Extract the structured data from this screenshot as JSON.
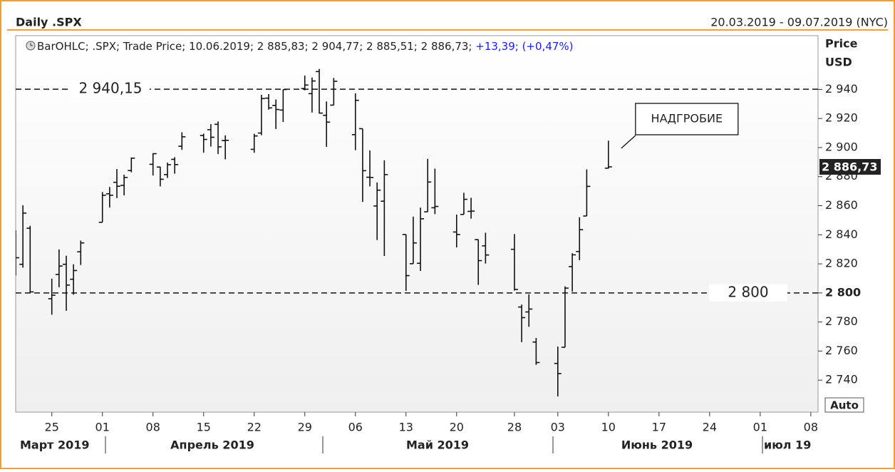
{
  "chart_data": {
    "type": "ohlc",
    "title": "Daily .SPX",
    "range_label": "20.03.2019 - 09.07.2019 (NYC)",
    "xlim": [
      "20.03.2019",
      "09.07.2019"
    ],
    "legend": {
      "text": "BarOHLC; .SPX; Trade Price; 10.06.2019; 2 885,83; 2 904,77; 2 885,51; 2 886,73; ",
      "change": "+13,39; (+0,47%)",
      "change_color": "#1a1aff"
    },
    "y_axis_label": [
      "Price",
      "USD"
    ],
    "scale_button": "Auto",
    "color": "#111111",
    "ylim": [
      2718,
      2977
    ],
    "yticks": [
      {
        "value": 2740,
        "label": "2 740"
      },
      {
        "value": 2760,
        "label": "2 760"
      },
      {
        "value": 2780,
        "label": "2 780"
      },
      {
        "value": 2800,
        "label": "2 800"
      },
      {
        "value": 2820,
        "label": "2 820"
      },
      {
        "value": 2840,
        "label": "2 840"
      },
      {
        "value": 2860,
        "label": "2 860"
      },
      {
        "value": 2880,
        "label": "2 880"
      },
      {
        "value": 2900,
        "label": "2 900"
      },
      {
        "value": 2920,
        "label": "2 920"
      },
      {
        "value": 2940,
        "label": "2 940"
      }
    ],
    "xticks": [
      {
        "value": "25.03.2019",
        "label": "25"
      },
      {
        "value": "01.04.2019",
        "label": "01"
      },
      {
        "value": "08.04.2019",
        "label": "08"
      },
      {
        "value": "15.04.2019",
        "label": "15"
      },
      {
        "value": "22.04.2019",
        "label": "22"
      },
      {
        "value": "29.04.2019",
        "label": "29"
      },
      {
        "value": "06.05.2019",
        "label": "06"
      },
      {
        "value": "13.05.2019",
        "label": "13"
      },
      {
        "value": "20.05.2019",
        "label": "20"
      },
      {
        "value": "28.05.2019",
        "label": "28"
      },
      {
        "value": "03.06.2019",
        "label": "03"
      },
      {
        "value": "10.06.2019",
        "label": "10"
      },
      {
        "value": "17.06.2019",
        "label": "17"
      },
      {
        "value": "24.06.2019",
        "label": "24"
      },
      {
        "value": "01.07.2019",
        "label": "01"
      },
      {
        "value": "08.07.2019",
        "label": "08"
      }
    ],
    "month_labels": [
      "Март 2019",
      "Апрель 2019",
      "Май 2019",
      "Июнь 2019",
      "июл 19"
    ],
    "reference_lines": [
      {
        "value": 2940.15,
        "label": "2 940,15"
      },
      {
        "value": 2800,
        "label": "2 800"
      }
    ],
    "last_price": {
      "value": 2886.73,
      "label": "2 886,73"
    },
    "annotation": {
      "text": "НАДГРОБИЕ",
      "date": "10.06.2019"
    },
    "categories": [
      "20.03.2019",
      "21.03.2019",
      "22.03.2019",
      "25.03.2019",
      "26.03.2019",
      "27.03.2019",
      "28.03.2019",
      "29.03.2019",
      "01.04.2019",
      "02.04.2019",
      "03.04.2019",
      "04.04.2019",
      "05.04.2019",
      "08.04.2019",
      "09.04.2019",
      "10.04.2019",
      "11.04.2019",
      "12.04.2019",
      "15.04.2019",
      "16.04.2019",
      "17.04.2019",
      "18.04.2019",
      "22.04.2019",
      "23.04.2019",
      "24.04.2019",
      "25.04.2019",
      "26.04.2019",
      "29.04.2019",
      "30.04.2019",
      "01.05.2019",
      "02.05.2019",
      "03.05.2019",
      "06.05.2019",
      "07.05.2019",
      "08.05.2019",
      "09.05.2019",
      "10.05.2019",
      "13.05.2019",
      "14.05.2019",
      "15.05.2019",
      "16.05.2019",
      "17.05.2019",
      "20.05.2019",
      "21.05.2019",
      "22.05.2019",
      "23.05.2019",
      "24.05.2019",
      "28.05.2019",
      "29.05.2019",
      "30.05.2019",
      "31.05.2019",
      "03.06.2019",
      "04.06.2019",
      "05.06.2019",
      "06.06.2019",
      "07.06.2019",
      "10.06.2019"
    ],
    "open": [
      2832,
      2819.7,
      2844.5,
      2796,
      2812.7,
      2819.7,
      2809.4,
      2828.3,
      2848.6,
      2868.2,
      2876.1,
      2874,
      2884.2,
      2888.5,
      2886.6,
      2881.4,
      2891.9,
      2900.9,
      2908.3,
      2912.3,
      2916,
      2904.8,
      2898.8,
      2910,
      2934,
      2929,
      2925.8,
      2940.6,
      2937.1,
      2952.3,
      2922.2,
      2929.2,
      2908.9,
      2913,
      2879.6,
      2859.8,
      2863.1,
      2840.2,
      2820.1,
      2820.4,
      2855.8,
      2858.6,
      2841.9,
      2854,
      2856.1,
      2836.7,
      2832.4,
      2830,
      2790.3,
      2786.9,
      2766.2,
      2751.5,
      2762.6,
      2818.1,
      2828.5,
      2852.9,
      2885.83
    ],
    "high": [
      2843,
      2860.3,
      2846.2,
      2809.8,
      2829.9,
      2825.6,
      2819.7,
      2836,
      2869.4,
      2872.9,
      2885.2,
      2881.3,
      2893.2,
      2896,
      2886.9,
      2889.7,
      2893.4,
      2910.5,
      2909.6,
      2916.1,
      2918,
      2908.4,
      2909.5,
      2936.3,
      2936.8,
      2933.1,
      2939.9,
      2949.5,
      2948.2,
      2954.1,
      2931.7,
      2947.9,
      2937.3,
      2913,
      2898,
      2876,
      2891.3,
      2840.2,
      2852.5,
      2858.7,
      2892.2,
      2885.5,
      2853.9,
      2868.9,
      2865.5,
      2836.7,
      2841.4,
      2840.5,
      2792,
      2799,
      2769,
      2763.1,
      2804.5,
      2827.3,
      2852.1,
      2885,
      2904.77
    ],
    "low": [
      2812,
      2817.4,
      2800.2,
      2785,
      2803.9,
      2787.7,
      2798.8,
      2819.2,
      2848.6,
      2858.8,
      2865.2,
      2867.1,
      2883,
      2880.8,
      2873.3,
      2879.1,
      2882,
      2898.4,
      2896.5,
      2900.7,
      2895.5,
      2891.9,
      2896.4,
      2908.5,
      2926.1,
      2912.8,
      2917.6,
      2939.4,
      2924.1,
      2923.4,
      2900.5,
      2929.2,
      2898.2,
      2862.6,
      2873.3,
      2836.4,
      2825.4,
      2801.4,
      2820.1,
      2815.1,
      2855.8,
      2854.2,
      2831.3,
      2854,
      2851.1,
      2805.5,
      2820.2,
      2801.6,
      2766.1,
      2776.7,
      2750.5,
      2728.8,
      2762.6,
      2800.9,
      2822.5,
      2852.9,
      2885.51
    ],
    "close": [
      2824.2,
      2854.9,
      2800.7,
      2798.4,
      2818.5,
      2805.4,
      2815.4,
      2834.4,
      2867.2,
      2867.2,
      2873.4,
      2879.4,
      2892.7,
      2895.8,
      2878.2,
      2888.2,
      2888.3,
      2907.4,
      2905.6,
      2907.1,
      2900.5,
      2905,
      2908,
      2933.7,
      2927.3,
      2926.2,
      2939.9,
      2943,
      2945.8,
      2923.7,
      2917.5,
      2945.6,
      2932.5,
      2884.1,
      2879.4,
      2870.7,
      2881.4,
      2811.9,
      2834.4,
      2851,
      2876.3,
      2859.5,
      2840.2,
      2864.4,
      2856.3,
      2822.2,
      2826.1,
      2802.4,
      2783,
      2788.9,
      2752.1,
      2744.5,
      2803.3,
      2826.2,
      2843.5,
      2873.3,
      2886.73
    ]
  }
}
